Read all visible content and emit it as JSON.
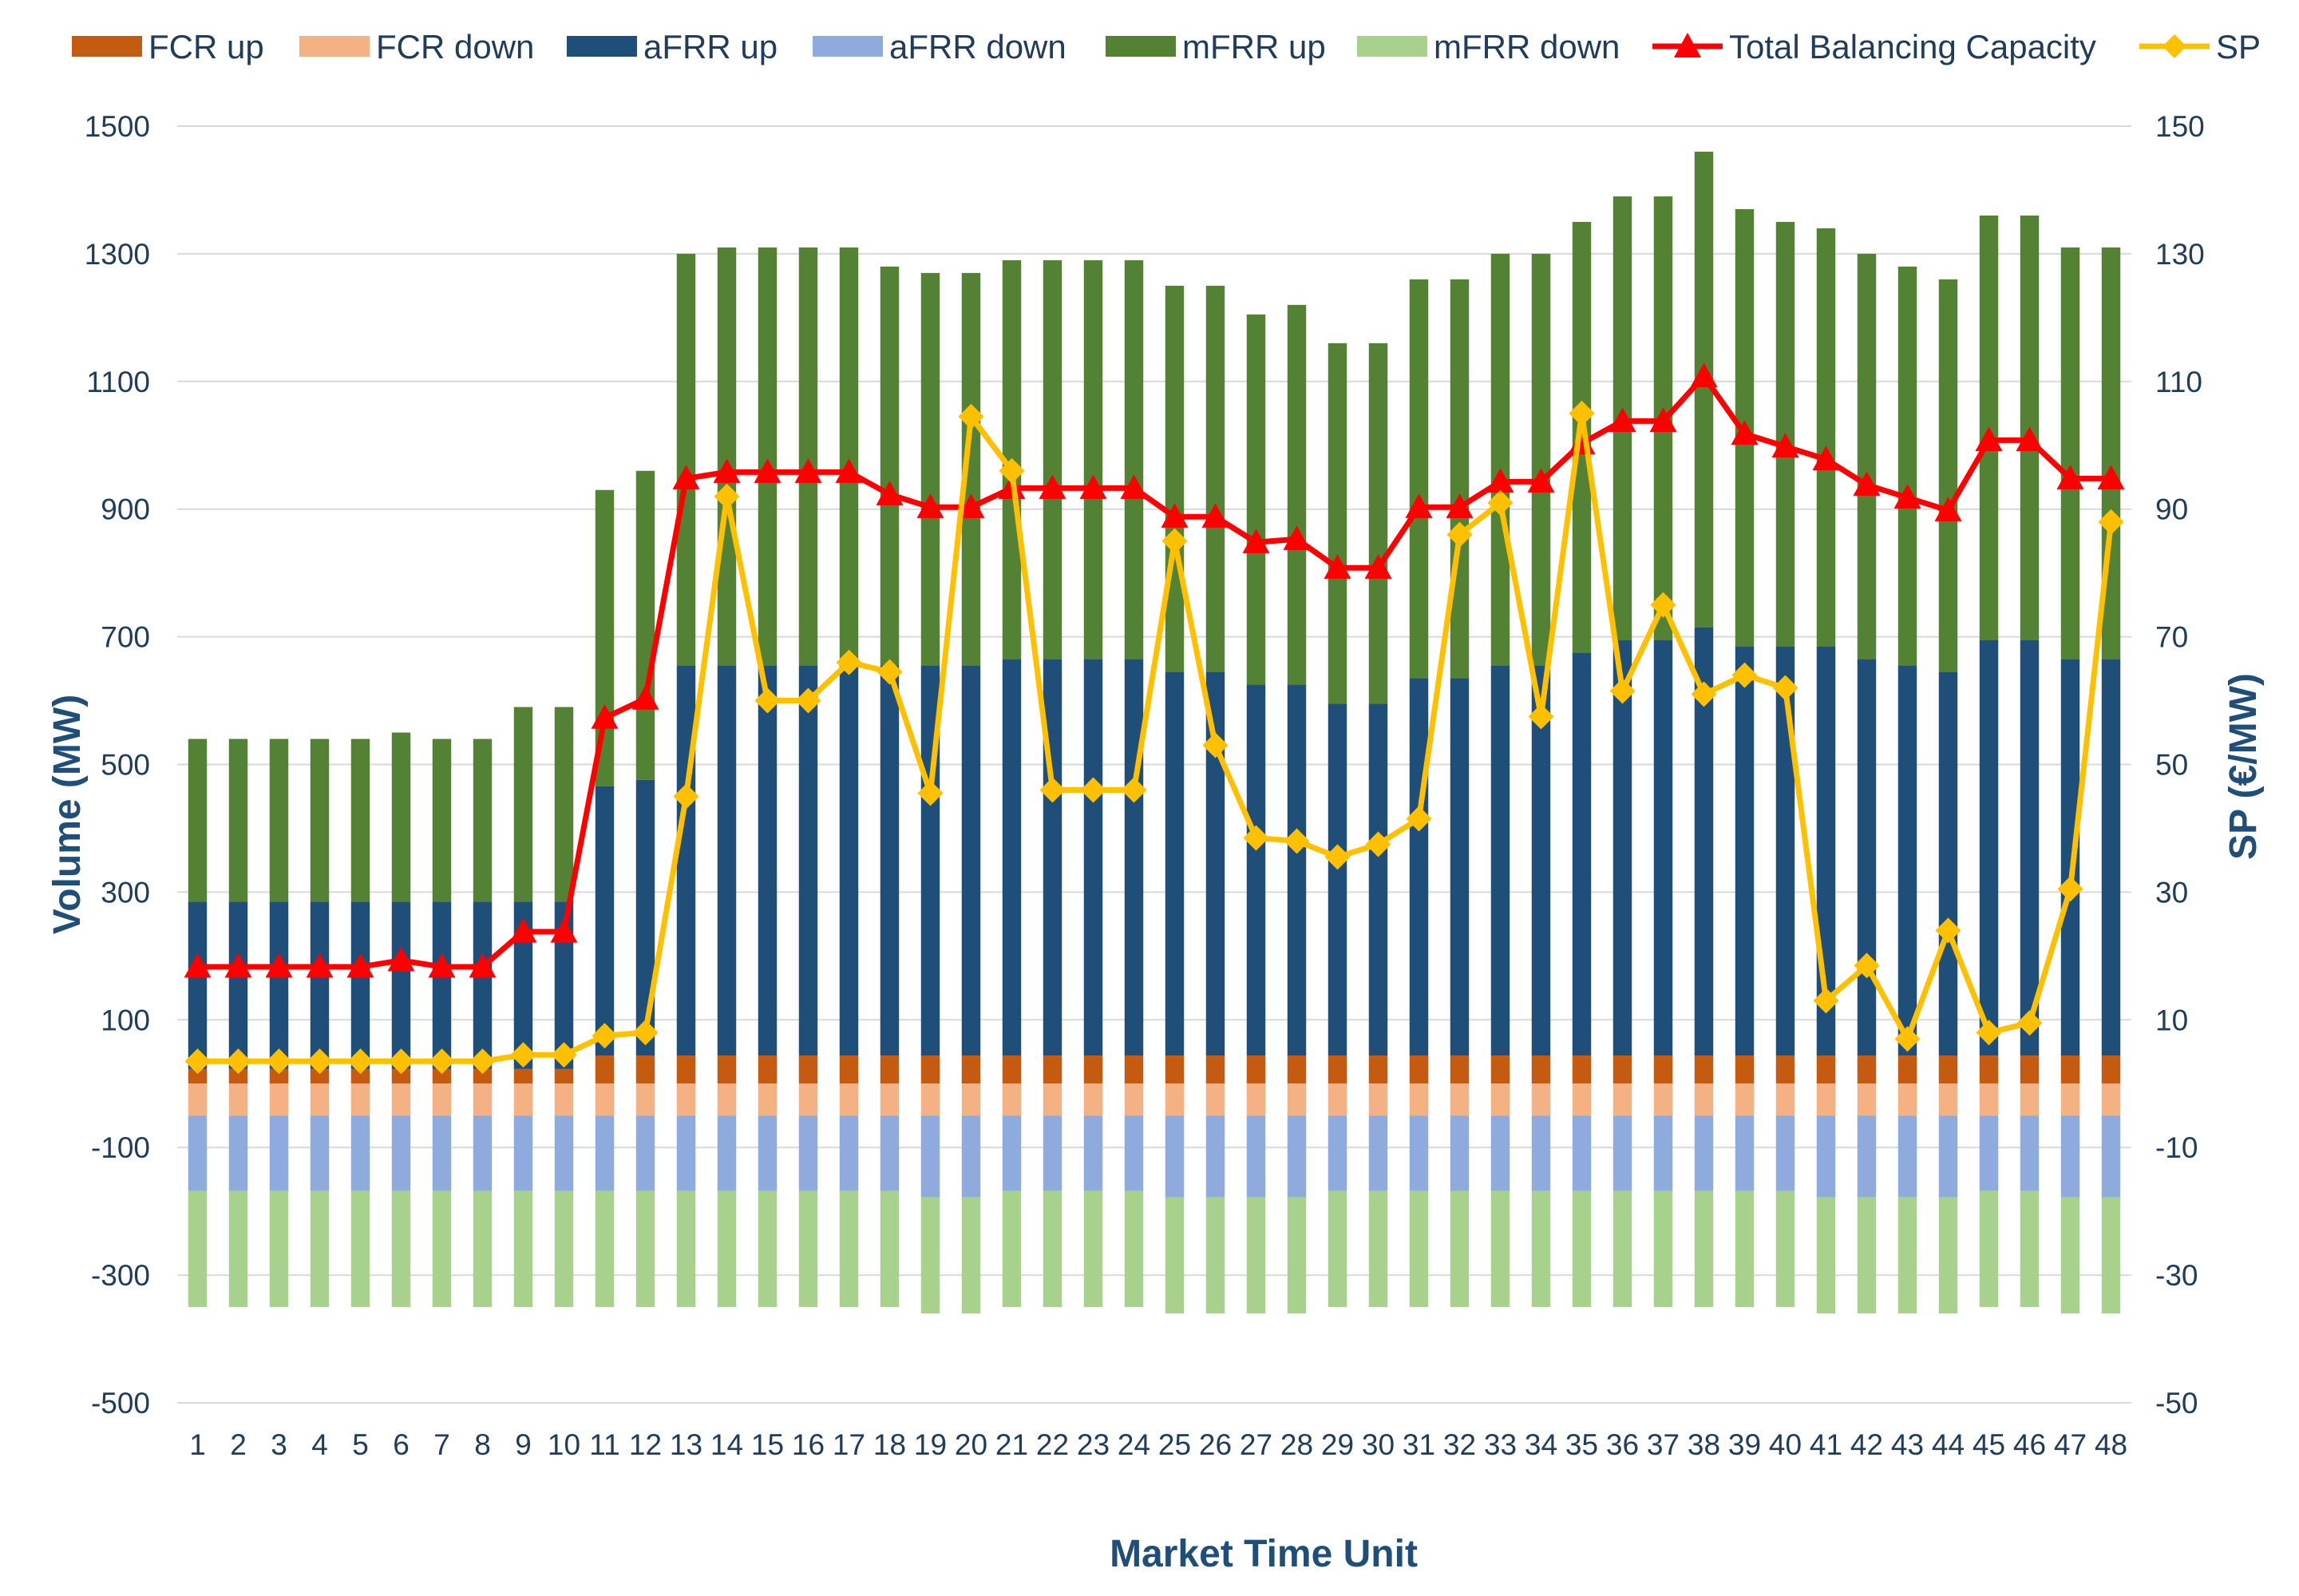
{
  "chart_data": {
    "type": "bar",
    "stacked": true,
    "title": "",
    "xlabel": "Market Time Unit",
    "ylabel": "Volume (MW)",
    "y2label": "SP (€/MW)",
    "ylim": [
      -500,
      1500
    ],
    "y2lim": [
      -50,
      150
    ],
    "yticks": [
      -500,
      -300,
      -100,
      100,
      300,
      500,
      700,
      900,
      1100,
      1300,
      1500
    ],
    "y2ticks": [
      -50,
      -30,
      -10,
      10,
      30,
      50,
      70,
      90,
      110,
      130,
      150
    ],
    "grid": true,
    "legend_position": "top",
    "categories": [
      "1",
      "2",
      "3",
      "4",
      "5",
      "6",
      "7",
      "8",
      "9",
      "10",
      "11",
      "12",
      "13",
      "14",
      "15",
      "16",
      "17",
      "18",
      "19",
      "20",
      "21",
      "22",
      "23",
      "24",
      "25",
      "26",
      "27",
      "28",
      "29",
      "30",
      "31",
      "32",
      "33",
      "34",
      "35",
      "36",
      "37",
      "38",
      "39",
      "40",
      "41",
      "42",
      "43",
      "44",
      "45",
      "46",
      "47",
      "48"
    ],
    "series": [
      {
        "name": "FCR up",
        "type": "bar",
        "stack": "pos",
        "color": "#c55a11",
        "values": [
          23,
          23,
          23,
          23,
          23,
          23,
          23,
          23,
          23,
          23,
          44,
          44,
          44,
          44,
          44,
          44,
          44,
          44,
          44,
          44,
          44,
          44,
          44,
          44,
          44,
          44,
          44,
          44,
          44,
          44,
          44,
          44,
          44,
          44,
          44,
          44,
          44,
          44,
          44,
          44,
          44,
          44,
          44,
          44,
          44,
          44,
          44,
          44
        ]
      },
      {
        "name": "FCR down",
        "type": "bar",
        "stack": "neg",
        "color": "#f4b183",
        "values": [
          -50,
          -50,
          -50,
          -50,
          -50,
          -50,
          -50,
          -50,
          -50,
          -50,
          -50,
          -50,
          -50,
          -50,
          -50,
          -50,
          -50,
          -50,
          -50,
          -50,
          -50,
          -50,
          -50,
          -50,
          -50,
          -50,
          -50,
          -50,
          -50,
          -50,
          -50,
          -50,
          -50,
          -50,
          -50,
          -50,
          -50,
          -50,
          -50,
          -50,
          -50,
          -50,
          -50,
          -50,
          -50,
          -50,
          -50,
          -50
        ]
      },
      {
        "name": "aFRR up",
        "type": "bar",
        "stack": "pos",
        "color": "#1f4e79",
        "values": [
          262,
          262,
          262,
          262,
          262,
          262,
          262,
          262,
          262,
          262,
          422,
          432,
          611,
          611,
          611,
          611,
          611,
          611,
          611,
          611,
          621,
          621,
          621,
          621,
          601,
          601,
          581,
          581,
          551,
          551,
          591,
          591,
          611,
          611,
          631,
          651,
          651,
          671,
          641,
          641,
          641,
          621,
          611,
          601,
          651,
          651,
          621,
          621
        ]
      },
      {
        "name": "aFRR down",
        "type": "bar",
        "stack": "neg",
        "color": "#8faadc",
        "values": [
          -118,
          -118,
          -118,
          -118,
          -118,
          -118,
          -118,
          -118,
          -118,
          -118,
          -118,
          -118,
          -118,
          -118,
          -118,
          -118,
          -118,
          -118,
          -128,
          -128,
          -118,
          -118,
          -118,
          -118,
          -128,
          -128,
          -128,
          -128,
          -118,
          -118,
          -118,
          -118,
          -118,
          -118,
          -118,
          -118,
          -118,
          -118,
          -118,
          -118,
          -128,
          -128,
          -128,
          -128,
          -118,
          -118,
          -128,
          -128
        ]
      },
      {
        "name": "mFRR up",
        "type": "bar",
        "stack": "pos",
        "color": "#548235",
        "values": [
          255,
          255,
          255,
          255,
          255,
          265,
          255,
          255,
          305,
          305,
          464,
          484,
          645,
          655,
          655,
          655,
          655,
          625,
          615,
          615,
          625,
          625,
          625,
          625,
          605,
          605,
          580,
          595,
          565,
          565,
          625,
          625,
          645,
          645,
          675,
          695,
          695,
          745,
          685,
          665,
          655,
          635,
          625,
          615,
          665,
          665,
          645,
          645
        ]
      },
      {
        "name": "mFRR down",
        "type": "bar",
        "stack": "neg",
        "color": "#a9d18e",
        "values": [
          -182,
          -182,
          -182,
          -182,
          -182,
          -182,
          -182,
          -182,
          -182,
          -182,
          -182,
          -182,
          -182,
          -182,
          -182,
          -182,
          -182,
          -182,
          -182,
          -182,
          -182,
          -182,
          -182,
          -182,
          -182,
          -182,
          -182,
          -182,
          -182,
          -182,
          -182,
          -182,
          -182,
          -182,
          -182,
          -182,
          -182,
          -182,
          -182,
          -182,
          -182,
          -182,
          -182,
          -182,
          -182,
          -182,
          -182,
          -182
        ]
      },
      {
        "name": "Total Balancing Capacity",
        "type": "line",
        "axis": "left",
        "color": "#ff0000",
        "marker": "triangle",
        "values": [
          183,
          183,
          183,
          183,
          183,
          193,
          183,
          183,
          238,
          238,
          573,
          603,
          948,
          958,
          958,
          958,
          958,
          923,
          903,
          903,
          933,
          933,
          933,
          933,
          888,
          888,
          848,
          853,
          808,
          808,
          903,
          903,
          943,
          943,
          1003,
          1038,
          1038,
          1108,
          1018,
          998,
          978,
          938,
          918,
          898,
          1008,
          1008,
          948,
          948
        ]
      },
      {
        "name": "SP",
        "type": "line",
        "axis": "right",
        "color": "#ffc000",
        "marker": "diamond",
        "values": [
          3.5,
          3.5,
          3.5,
          3.5,
          3.5,
          3.5,
          3.5,
          3.5,
          4.5,
          4.5,
          7.5,
          8,
          45,
          92,
          60,
          60,
          66,
          64.5,
          45.5,
          104.5,
          96,
          46,
          46,
          46,
          85,
          53,
          38.5,
          38,
          35.5,
          37.5,
          41.5,
          86,
          91,
          57.5,
          105,
          61.5,
          75,
          61,
          64,
          62,
          13,
          18.5,
          7,
          24,
          8,
          9.5,
          30.5,
          88
        ]
      }
    ]
  }
}
